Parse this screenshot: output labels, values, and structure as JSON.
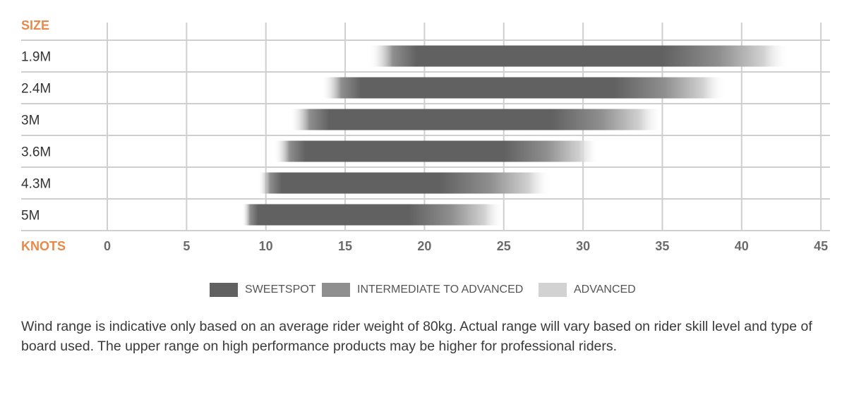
{
  "colors": {
    "accent": "#e8894a",
    "sweetspot": "#616161",
    "intermediate": "#8f8f8f",
    "advanced": "#d2d2d2",
    "grid": "#cfcfcf",
    "tick_label": "#6b6b6b",
    "row_label": "#333333"
  },
  "chart_data": {
    "type": "range-bar",
    "y_header": "SIZE",
    "x_header": "KNOTS",
    "categories": [
      "1.9M",
      "2.4M",
      "3M",
      "3.6M",
      "4.3M",
      "5M"
    ],
    "x_ticks": [
      0,
      5,
      10,
      15,
      20,
      25,
      30,
      35,
      40,
      45
    ],
    "xlim": [
      0,
      45
    ],
    "grid": true,
    "ranges": [
      {
        "size": "1.9M",
        "advanced_min": 16.5,
        "sweetspot_min": 19.5,
        "sweetspot_max": 35,
        "advanced_max": 43
      },
      {
        "size": "2.4M",
        "advanced_min": 13.5,
        "sweetspot_min": 16,
        "sweetspot_max": 32,
        "advanced_max": 39
      },
      {
        "size": "3M",
        "advanced_min": 11.5,
        "sweetspot_min": 14,
        "sweetspot_max": 28,
        "advanced_max": 35
      },
      {
        "size": "3.6M",
        "advanced_min": 10.5,
        "sweetspot_min": 12.5,
        "sweetspot_max": 25,
        "advanced_max": 31
      },
      {
        "size": "4.3M",
        "advanced_min": 9.5,
        "sweetspot_min": 11,
        "sweetspot_max": 21,
        "advanced_max": 28
      },
      {
        "size": "5M",
        "advanced_min": 8.5,
        "sweetspot_min": 9.5,
        "sweetspot_max": 19,
        "advanced_max": 25
      }
    ],
    "legend": [
      {
        "label": "SWEETSPOT",
        "color_key": "sweetspot"
      },
      {
        "label": "INTERMEDIATE TO ADVANCED",
        "color_key": "intermediate"
      },
      {
        "label": "ADVANCED",
        "color_key": "advanced"
      }
    ],
    "legend_position": "bottom-center"
  },
  "note": "Wind range is indicative only based on an average rider weight of 80kg. Actual range will vary based on rider skill level and type of board used. The upper range on high performance products may be higher for professional riders."
}
